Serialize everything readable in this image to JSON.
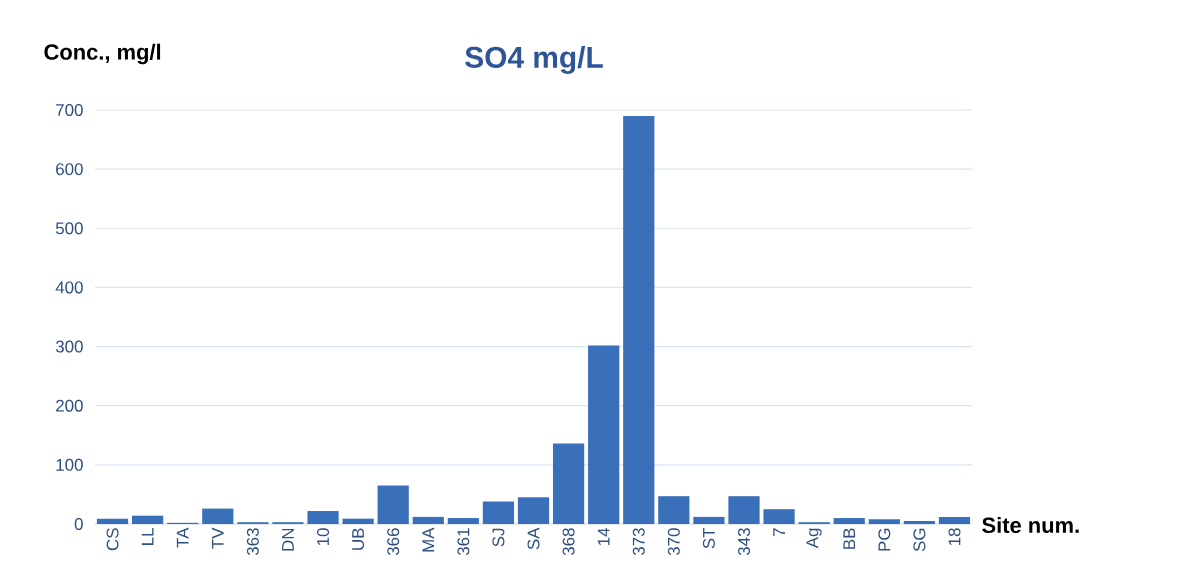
{
  "chart_data": {
    "type": "bar",
    "title": "SO4 mg/L",
    "ylabel": "Conc., mg/l",
    "xlabel": "Site num.",
    "categories": [
      "CS",
      "LL",
      "TA",
      "TV",
      "363",
      "DN",
      "10",
      "UB",
      "366",
      "MA",
      "361",
      "SJ",
      "SA",
      "368",
      "14",
      "373",
      "370",
      "ST",
      "343",
      "7",
      "Ag",
      "BB",
      "PG",
      "SG",
      "18"
    ],
    "values": [
      9,
      14,
      2,
      26,
      3,
      3,
      22,
      9,
      65,
      12,
      10,
      38,
      45,
      136,
      302,
      690,
      47,
      12,
      47,
      25,
      3,
      10,
      8,
      5,
      12
    ],
    "color": "#3a70ba",
    "ylim": [
      0,
      700
    ],
    "yticks": [
      0,
      100,
      200,
      300,
      400,
      500,
      600,
      700
    ],
    "grid": "y"
  }
}
